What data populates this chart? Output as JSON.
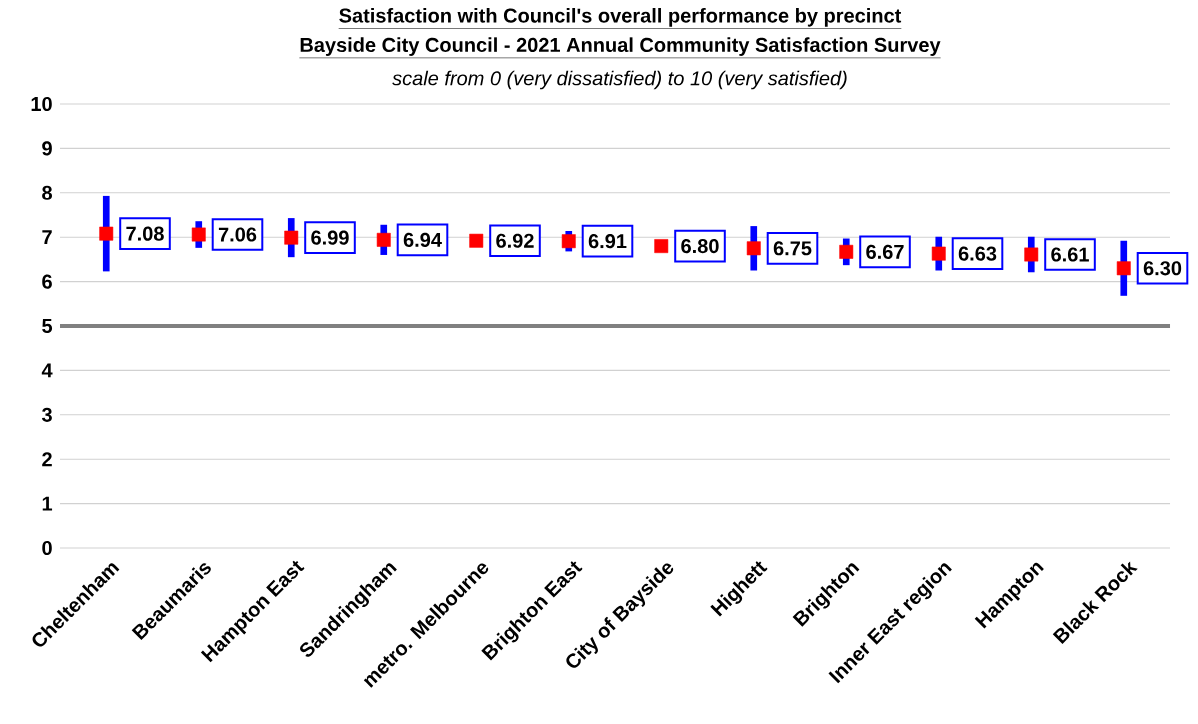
{
  "chart_data": {
    "type": "scatter",
    "title": "Satisfaction with Council's overall performance by precinct",
    "subtitle": "Bayside City Council - 2021 Annual Community Satisfaction Survey",
    "annotations": [
      "scale from 0 (very dissatisfied) to 10 (very satisfied)"
    ],
    "categories": [
      "Cheltenham",
      "Beaumaris",
      "Hampton East",
      "Sandringham",
      "metro. Melbourne",
      "Brighton East",
      "City of Bayside",
      "Highett",
      "Brighton",
      "Inner East region",
      "Hampton",
      "Black Rock"
    ],
    "values": [
      7.08,
      7.06,
      6.99,
      6.94,
      6.92,
      6.91,
      6.8,
      6.75,
      6.67,
      6.63,
      6.61,
      6.3
    ],
    "errors": [
      0.85,
      0.3,
      0.44,
      0.34,
      null,
      0.23,
      null,
      0.5,
      0.3,
      0.38,
      0.4,
      0.62
    ],
    "value_labels": [
      "7.08",
      "7.06",
      "6.99",
      "6.94",
      "6.92",
      "6.91",
      "6.80",
      "6.75",
      "6.67",
      "6.63",
      "6.61",
      "6.30"
    ],
    "color": "#ff0000",
    "marker": "square",
    "ylim": [
      0,
      10
    ],
    "yticks": [
      0,
      1,
      2,
      3,
      4,
      5,
      6,
      7,
      8,
      9,
      10
    ],
    "grid": "y",
    "ref_lines": [
      {
        "axis": "y",
        "value": 5,
        "color": "#808080"
      }
    ]
  }
}
